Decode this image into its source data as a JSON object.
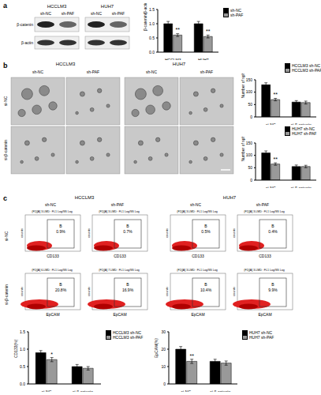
{
  "chart_data": [
    {
      "type": "bar",
      "y_label": "β-catenin/β-actin",
      "categories": [
        "HCCLM3",
        "HUH7"
      ],
      "ylim": [
        0,
        1.5
      ],
      "yticks": [
        {
          "value": 0,
          "label": "0.0"
        },
        {
          "value": 0.5,
          "label": "0.5"
        },
        {
          "value": 1,
          "label": "1.0"
        },
        {
          "value": 1.5,
          "label": "1.5"
        }
      ],
      "legend": "right",
      "series": [
        {
          "name": "sh-NC",
          "color": "#000000",
          "values": [
            1.0,
            1.0
          ],
          "errors": [
            0.08,
            0.08
          ]
        },
        {
          "name": "sh-PAF",
          "color": "#999999",
          "values": [
            0.6,
            0.55
          ],
          "errors": [
            0.05,
            0.05
          ],
          "significance": [
            "**",
            "**"
          ]
        }
      ]
    },
    {
      "type": "bar",
      "y_label": "Number of spheres",
      "categories": [
        "si-NC",
        "si-β-catenin"
      ],
      "ylim": [
        0,
        150
      ],
      "yticks": [
        0,
        50,
        100,
        150
      ],
      "legend": "top",
      "series": [
        {
          "name": "HCCLM3 sh-NC",
          "color": "#000000",
          "values": [
            130,
            60
          ],
          "errors": [
            8,
            6
          ]
        },
        {
          "name": "HCCLM3 sh-PAF",
          "color": "#999999",
          "values": [
            70,
            58
          ],
          "errors": [
            5,
            6
          ],
          "significance": [
            "**",
            null
          ]
        }
      ]
    },
    {
      "type": "bar",
      "y_label": "Number of spheres",
      "categories": [
        "si-NC",
        "si-β-catenin"
      ],
      "ylim": [
        0,
        150
      ],
      "yticks": [
        0,
        50,
        100,
        150
      ],
      "legend": "top",
      "series": [
        {
          "name": "HUH7 sh-NC",
          "color": "#000000",
          "values": [
            110,
            55
          ],
          "errors": [
            8,
            6
          ]
        },
        {
          "name": "HUH7 sh-PAF",
          "color": "#999999",
          "values": [
            65,
            55
          ],
          "errors": [
            5,
            5
          ],
          "significance": [
            "**",
            null
          ]
        }
      ]
    },
    {
      "type": "bar",
      "y_label": "CD133(%)",
      "categories": [
        "si-NC",
        "si-β-catenin"
      ],
      "ylim": [
        0,
        1.5
      ],
      "yticks": [
        {
          "value": 0,
          "label": "0.0"
        },
        {
          "value": 0.5,
          "label": "0.5"
        },
        {
          "value": 1,
          "label": "1.0"
        },
        {
          "value": 1.5,
          "label": "1.5"
        }
      ],
      "legend": "right",
      "series": [
        {
          "name": "HCCLM3 sh-NC",
          "color": "#000000",
          "values": [
            0.9,
            0.5
          ],
          "errors": [
            0.06,
            0.06
          ]
        },
        {
          "name": "HCCLM3 sh-PAF",
          "color": "#999999",
          "values": [
            0.7,
            0.45
          ],
          "errors": [
            0.06,
            0.05
          ],
          "significance": [
            "*",
            null
          ]
        }
      ]
    },
    {
      "type": "bar",
      "y_label": "EpCAM(%)",
      "categories": [
        "si-NC",
        "si-β-catenin"
      ],
      "ylim": [
        0,
        30
      ],
      "yticks": [
        0,
        10,
        20,
        30
      ],
      "legend": "right",
      "series": [
        {
          "name": "HUH7 sh-NC",
          "color": "#000000",
          "values": [
            20,
            13
          ],
          "errors": [
            1.5,
            1.2
          ]
        },
        {
          "name": "HUH7 sh-PAF",
          "color": "#999999",
          "values": [
            13,
            12
          ],
          "errors": [
            1.2,
            1.2
          ],
          "significance": [
            "**",
            null
          ]
        }
      ]
    }
  ],
  "figure": {
    "panel_labels": [
      "a",
      "b",
      "c"
    ],
    "blot": {
      "cell_lines": [
        "HCCLM3",
        "HUH7"
      ],
      "groups": [
        "sh-NC",
        "sh-PAF"
      ],
      "bands": [
        "β-catenin",
        "β-actin"
      ]
    },
    "spheres": {
      "cell_lines": [
        "HCCLM3",
        "HUH7"
      ],
      "groups": [
        "sh-NC",
        "sh-PAF"
      ],
      "rows": [
        "si-NC",
        "si-β-catenin"
      ]
    },
    "flow": {
      "cell_lines": [
        "HCCLM3",
        "HUH7"
      ],
      "groups": [
        "sh-NC",
        "sh-PAF"
      ],
      "rows": [
        "si-NC",
        "si-β-catenin"
      ],
      "gate": "B",
      "y_label": "counts",
      "plots": [
        [
          {
            "title": "(F1)[A] 3.LMD : FL1 Log/SS Log",
            "x_label": "CD133",
            "percent": "0.9%"
          },
          {
            "title": "(F1)[A] 3.LMD : FL1 Log/SS Log",
            "x_label": "CD133",
            "percent": "0.7%"
          },
          {
            "title": "(F1)[A] 3.LMD : FL1 Log/SS Log",
            "x_label": "CD133",
            "percent": "0.5%"
          },
          {
            "title": "(F1)[A] 3.LMD : FL1 Log/SS Log",
            "x_label": "CD133",
            "percent": "0.4%"
          }
        ],
        [
          {
            "title": "(F1)[A] 6.LMD : FL1 Log/SS Log",
            "x_label": "EpCAM",
            "percent": "20.8%"
          },
          {
            "title": "(F1)[A] 7.LMD : FL1 Log/SS Log",
            "x_label": "EpCAM",
            "percent": "16.9%"
          },
          {
            "title": "(F1)[A] 3.LMD : FL1 Log/SS Log",
            "x_label": "EpCAM",
            "percent": "10.4%"
          },
          {
            "title": "(F1)[A] 3.LMD : FL1 Log/SS Log",
            "x_label": "EpCAM",
            "percent": "9.9%"
          }
        ]
      ]
    }
  }
}
